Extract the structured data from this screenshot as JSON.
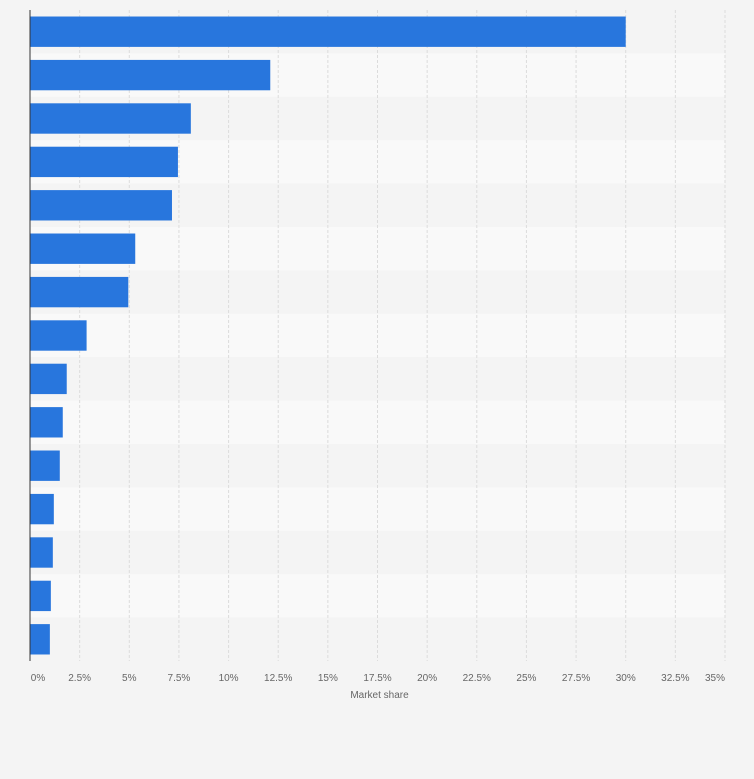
{
  "chart_data": {
    "type": "bar",
    "orientation": "horizontal",
    "categories": [
      "",
      "",
      "",
      "",
      "",
      "",
      "",
      "",
      "",
      "",
      "",
      "",
      "",
      "",
      ""
    ],
    "values": [
      30.0,
      12.1,
      8.1,
      7.45,
      7.15,
      5.3,
      4.95,
      2.85,
      1.85,
      1.65,
      1.5,
      1.2,
      1.15,
      1.05,
      1.0
    ],
    "xlabel": "Market share",
    "ylabel": "",
    "xlim": [
      0,
      35
    ],
    "x_ticks": [
      "0%",
      "2.5%",
      "5%",
      "7.5%",
      "10%",
      "12.5%",
      "15%",
      "17.5%",
      "20%",
      "22.5%",
      "25%",
      "27.5%",
      "30%",
      "32.5%",
      "35%"
    ],
    "grid": true,
    "legend": "none",
    "colors": {
      "bar": "#2876dd",
      "band_even": "#f4f4f4",
      "band_odd": "#f9f9f9",
      "grid": "#dcdcdc",
      "axis": "#333333",
      "text": "#666666",
      "background": "#f4f4f4"
    }
  }
}
